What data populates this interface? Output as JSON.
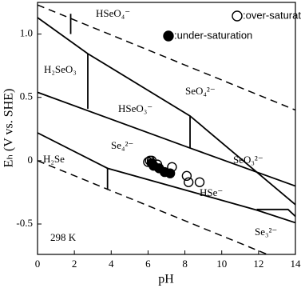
{
  "chart_data": {
    "type": "eh-ph",
    "x_label": "pH",
    "y_label": "Eₕ (V vs. SHE)",
    "xlim": [
      0,
      14
    ],
    "ylim": [
      -0.74,
      1.25
    ],
    "xticks": [
      0,
      2,
      4,
      6,
      8,
      10,
      12,
      14
    ],
    "yticks": [
      -0.5,
      0,
      0.5,
      {
        "value": 1,
        "label": "1.0"
      }
    ],
    "lines": [
      {
        "style": "solid",
        "x": [
          0,
          2.73,
          8.28,
          14
        ],
        "values": [
          1.13,
          0.845,
          0.353,
          -0.347
        ]
      },
      {
        "style": "solid",
        "x": [
          0,
          8.28,
          14
        ],
        "values": [
          0.54,
          0.1,
          -0.2
        ]
      },
      {
        "style": "solid",
        "x": [
          0,
          3.8,
          11.9,
          14
        ],
        "values": [
          0.22,
          -0.06,
          -0.39,
          -0.49
        ]
      },
      {
        "style": "solid",
        "x": [
          11.9,
          13.6,
          14
        ],
        "values": [
          -0.385,
          -0.385,
          -0.44
        ]
      },
      {
        "style": "solid",
        "x": [
          1.8,
          1.8
        ],
        "values": [
          1.16,
          1.0
        ]
      },
      {
        "style": "solid",
        "x": [
          2.73,
          2.73
        ],
        "values": [
          0.845,
          0.41
        ]
      },
      {
        "style": "solid",
        "x": [
          8.28,
          8.28
        ],
        "values": [
          0.353,
          0.1
        ]
      },
      {
        "style": "solid",
        "x": [
          3.8,
          3.8
        ],
        "values": [
          -0.06,
          -0.23
        ]
      },
      {
        "style": "dashed",
        "x": [
          0,
          14
        ],
        "values": [
          1.23,
          0.4
        ]
      },
      {
        "style": "dashed",
        "x": [
          0,
          14
        ],
        "values": [
          0,
          -0.83
        ]
      }
    ],
    "series": [
      {
        "name": ":over-saturation",
        "fill": "none",
        "x": [
          6.0,
          6.1,
          6.2,
          6.5,
          7.3,
          8.1,
          8.2,
          8.8
        ],
        "values": [
          -0.01,
          0.0,
          0.0,
          -0.03,
          -0.05,
          -0.12,
          -0.17,
          -0.17
        ]
      },
      {
        "name": ":under-saturation",
        "fill": "#000",
        "x": [
          6.2,
          6.3,
          6.6,
          6.9,
          7.2
        ],
        "values": [
          -0.02,
          -0.04,
          -0.06,
          -0.09,
          -0.1
        ]
      }
    ],
    "annotations": [
      "HSeO₄⁻",
      "H₂SeO₃",
      "HSeO₃⁻",
      "SeO₄²⁻",
      "Se₄²⁻",
      "SeO₃²⁻",
      "H₂Se",
      "HSe⁻",
      "Se₃²⁻",
      "298 K"
    ]
  }
}
